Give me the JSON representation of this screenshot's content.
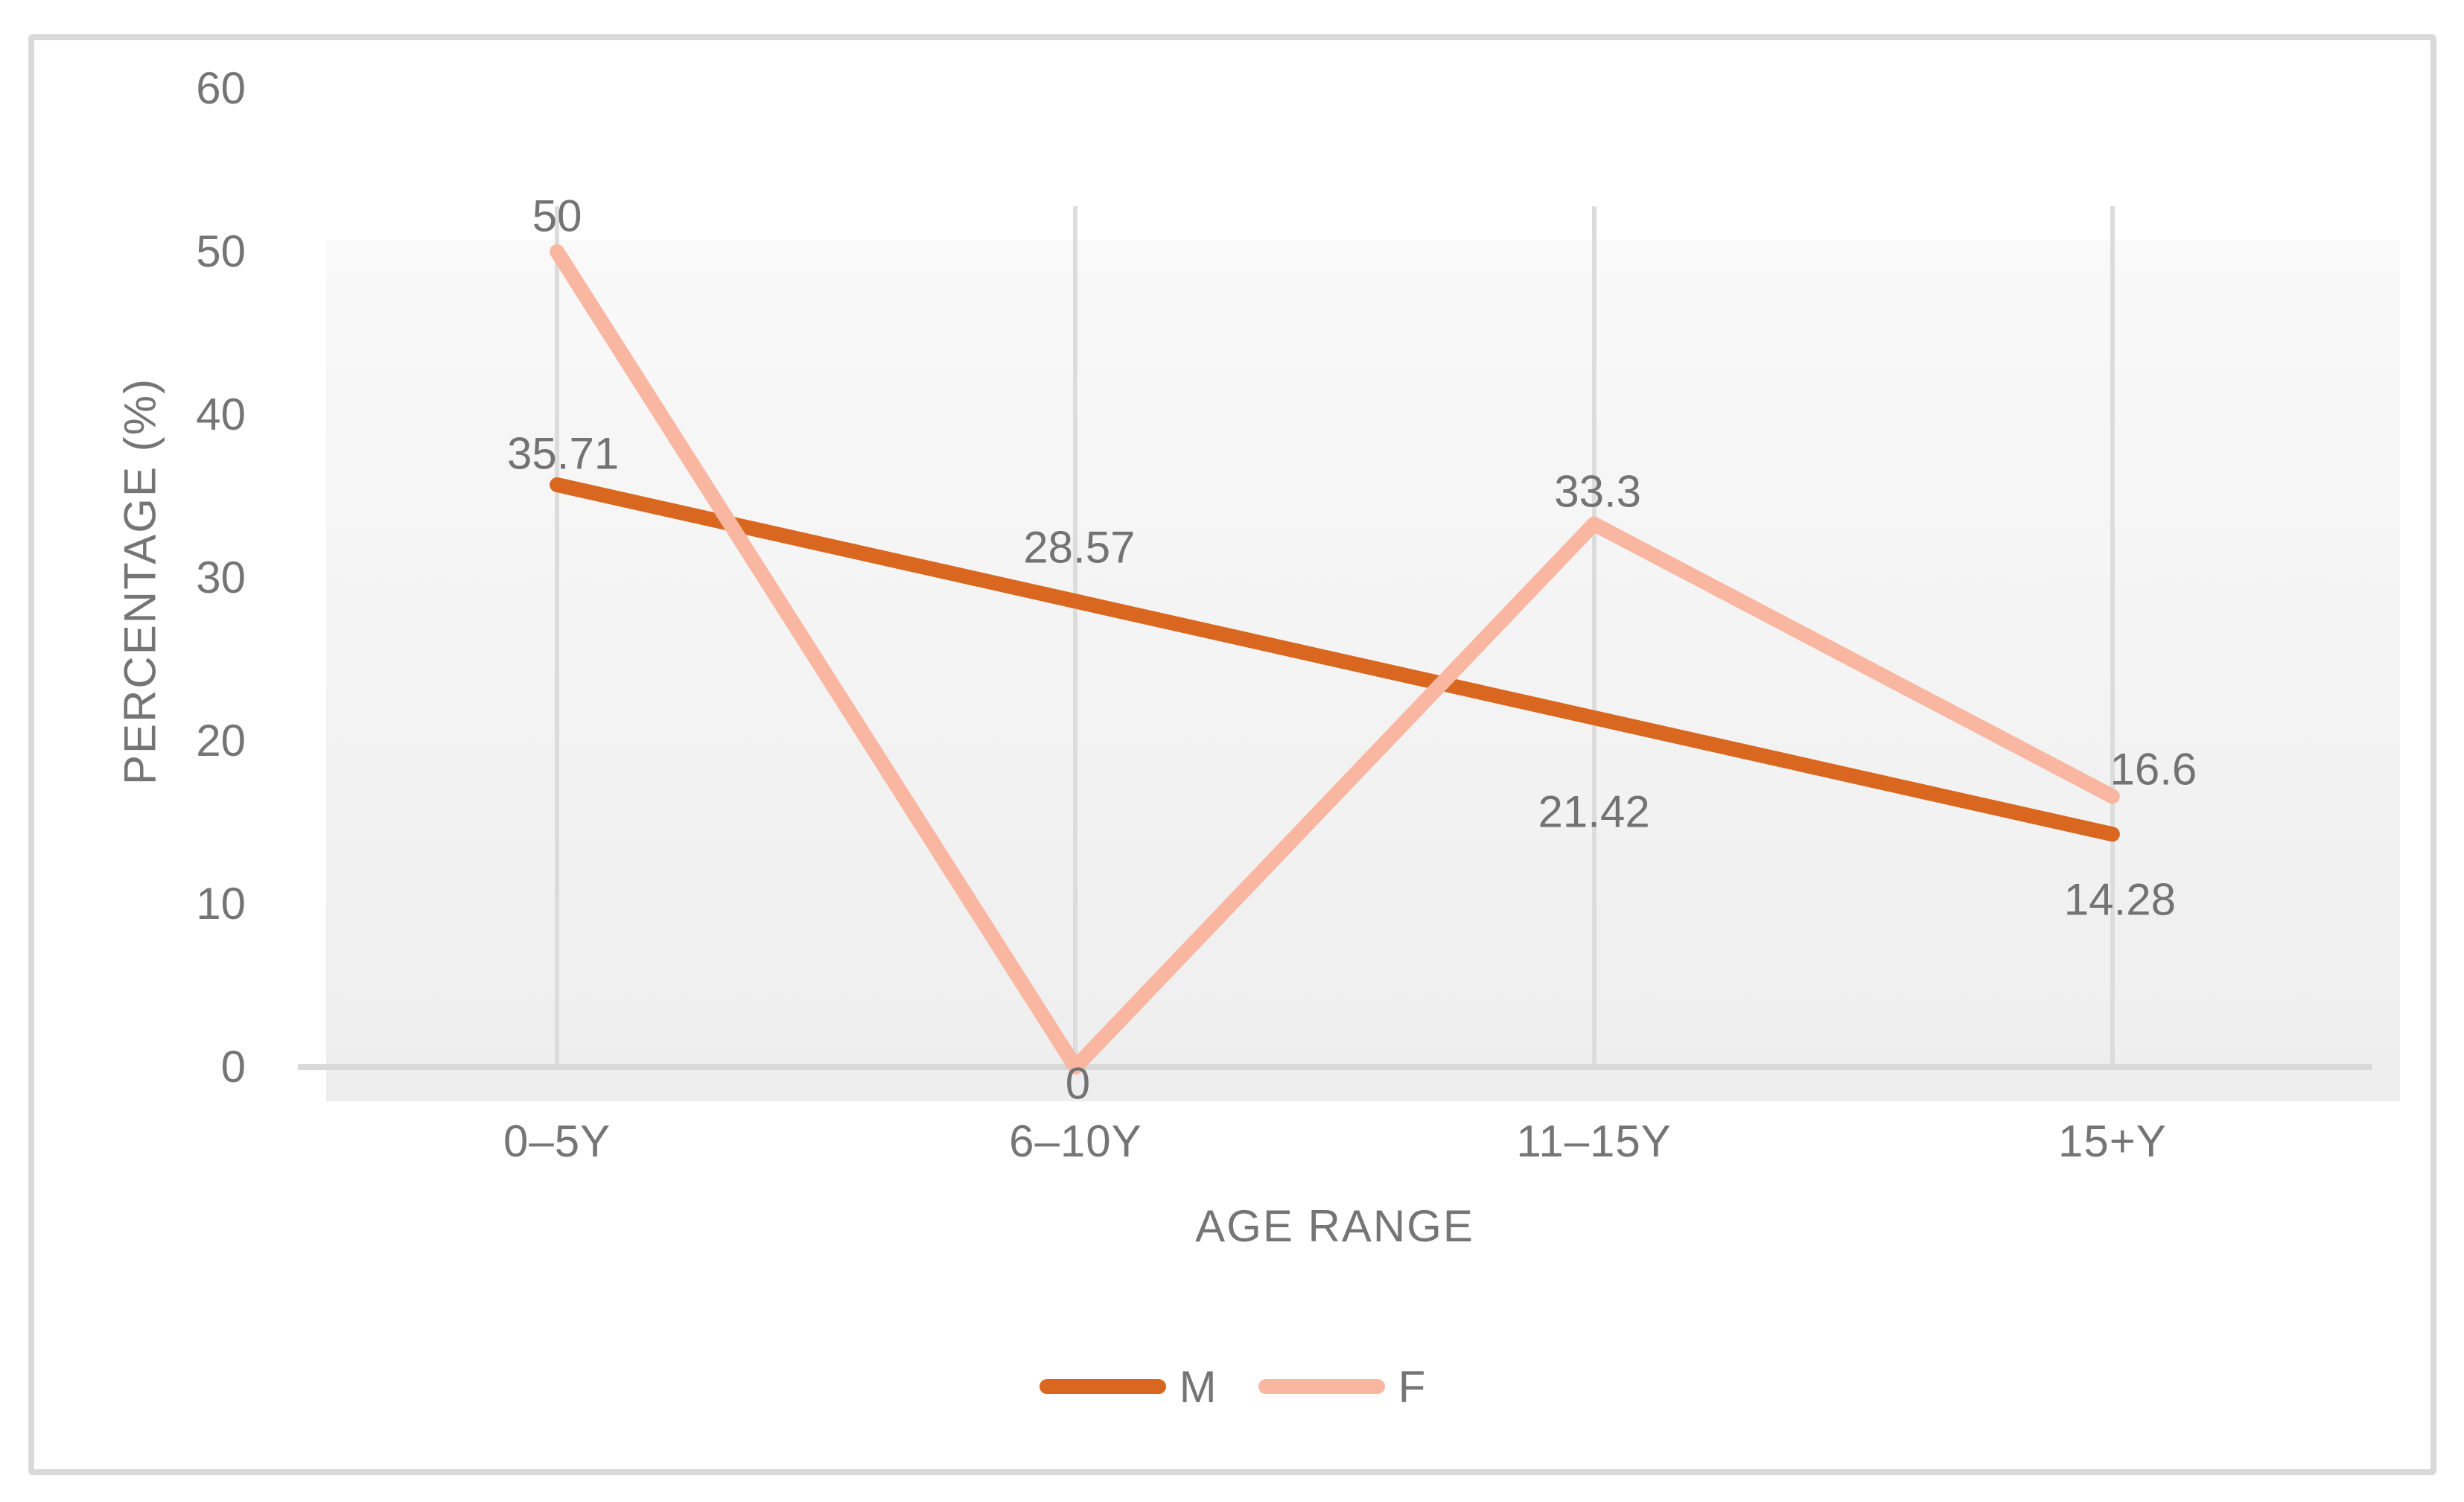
{
  "chart_data": {
    "type": "line",
    "title": "",
    "xlabel": "AGE RANGE",
    "ylabel": "PERCENTAGE (%)",
    "categories": [
      "0–5Y",
      "6–10Y",
      "11–15Y",
      "15+Y"
    ],
    "yticks": [
      0,
      10,
      20,
      30,
      40,
      50,
      60
    ],
    "ylim": [
      0,
      60
    ],
    "grid": "vertical-category-gridlines-only",
    "legend_position": "bottom-center",
    "plot_background": [
      "#FFFFFF",
      "#EEEEEE"
    ],
    "axis_color": "#D9D9D9",
    "gridline_color": "#DCDCDC",
    "text_color": "#757575",
    "series": [
      {
        "name": "M",
        "color": "#D9671F",
        "values": [
          35.71,
          28.57,
          21.42,
          14.28
        ],
        "labels": [
          "35.71",
          "28.57",
          "21.42",
          "14.28"
        ]
      },
      {
        "name": "F",
        "color": "#F9B7A2",
        "values": [
          50,
          0,
          33.3,
          16.6
        ],
        "labels": [
          "50",
          "0",
          "33.3",
          "16.6"
        ]
      }
    ]
  }
}
